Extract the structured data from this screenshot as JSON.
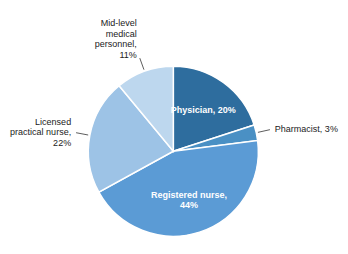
{
  "chart_data": {
    "type": "pie",
    "categories": [
      "Physician",
      "Pharmacist",
      "Registered nurse",
      "Licensed practical nurse",
      "Mid-level medical personnel"
    ],
    "values": [
      20,
      3,
      44,
      22,
      11
    ],
    "value_labels": [
      "Physician, 20%",
      "Pharmacist, 3%",
      "Registered nurse,\n44%",
      "Licensed\npractical nurse,\n22%",
      "Mid-level\nmedical\npersonnel,\n11%"
    ],
    "colors": [
      "#2e6d9e",
      "#4a90c4",
      "#5b9bd5",
      "#9dc3e6",
      "#bdd7ee"
    ],
    "data_labels": true
  }
}
